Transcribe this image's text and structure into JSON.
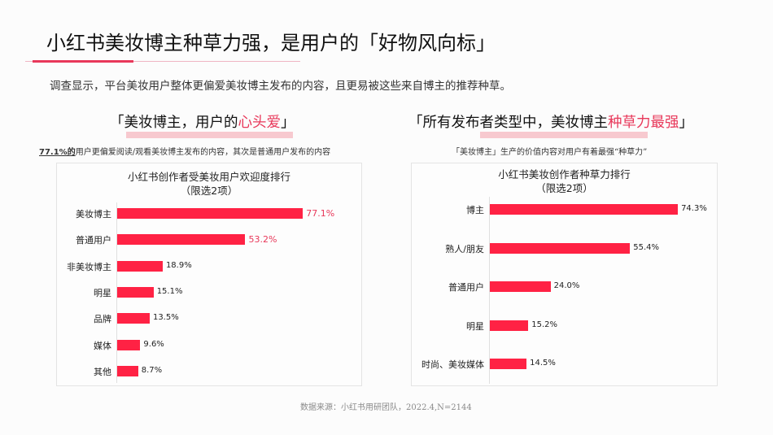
{
  "header": {
    "title": "小红书美妆博主种草力强，是用户的「好物风向标」",
    "intro": "调查显示，平台美妆用户整体更偏爱美妆博主发布的内容，且更易被这些来自博主的推荐种草。"
  },
  "left_section": {
    "heading_pre": "「美妆博主，用户的",
    "heading_hl": "心头爱",
    "heading_post": "」",
    "sub_pct": "77.1%的",
    "sub_rest": "用户更偏爱阅读/观看美妆博主发布的内容，其次是普通用户发布的内容"
  },
  "right_section": {
    "heading_pre": "「所有发布者类型中，美妆博主",
    "heading_hl": "种草力最强",
    "heading_post": "」",
    "sub": "「美妆博主」生产的价值内容对用户有着最强“种草力”"
  },
  "footer": {
    "source": "数据来源：小红书用研团队，2022.4,N=2144"
  },
  "colors": {
    "accent": "#e8385a",
    "bar": "#ff2244",
    "highlight_band": "#f7c9cf"
  },
  "chart_data": [
    {
      "type": "bar",
      "orientation": "horizontal",
      "title": "小红书创作者受美妆用户欢迎度排行",
      "subtitle": "（限选2项）",
      "categories": [
        "美妆博主",
        "普通用户",
        "非美妆博主",
        "明星",
        "品牌",
        "媒体",
        "其他"
      ],
      "values": [
        77.1,
        53.2,
        18.9,
        15.1,
        13.5,
        9.6,
        8.7
      ],
      "labels": [
        "77.1%",
        "53.2%",
        "18.9%",
        "15.1%",
        "13.5%",
        "9.6%",
        "8.7%"
      ],
      "unit": "%",
      "xlabel": "",
      "ylabel": "",
      "grid": false,
      "legend": null
    },
    {
      "type": "bar",
      "orientation": "horizontal",
      "title": "小红书美妆创作者种草力排行",
      "subtitle": "（限选2项）",
      "categories": [
        "博主",
        "熟人/朋友",
        "普通用户",
        "明星",
        "时尚、美妆媒体"
      ],
      "values": [
        74.3,
        55.4,
        24.0,
        15.2,
        14.5
      ],
      "labels": [
        "74.3%",
        "55.4%",
        "24.0%",
        "15.2%",
        "14.5%"
      ],
      "unit": "%",
      "xlabel": "",
      "ylabel": "",
      "grid": false,
      "legend": null
    }
  ]
}
